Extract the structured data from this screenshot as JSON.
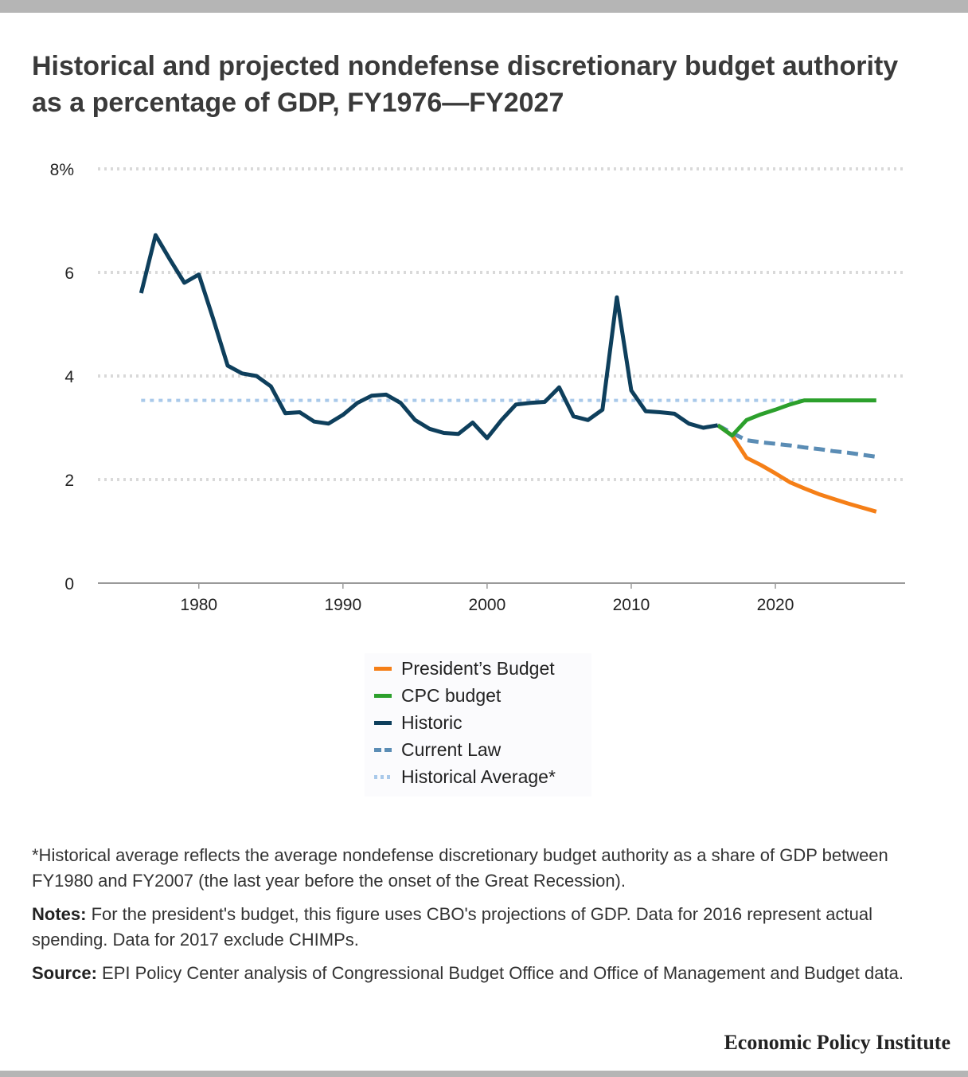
{
  "title": "Historical and projected nondefense discretionary budget authority as a percentage of GDP, FY1976—FY2027",
  "colors": {
    "presidents_budget": "#f57f17",
    "cpc_budget": "#2ca02c",
    "historic": "#0e3f5c",
    "current_law": "#5b8db5",
    "historical_average": "#a9c9ea",
    "gridline": "#d9d9d9"
  },
  "legend": [
    {
      "key": "presidents_budget",
      "label": "President’s Budget",
      "style": "solid"
    },
    {
      "key": "cpc_budget",
      "label": "CPC  budget",
      "style": "solid"
    },
    {
      "key": "historic",
      "label": "Historic",
      "style": "solid"
    },
    {
      "key": "current_law",
      "label": "Current Law",
      "style": "dashed"
    },
    {
      "key": "historical_average",
      "label": "Historical Average*",
      "style": "dotted"
    }
  ],
  "chart_data": {
    "type": "line",
    "xlim": [
      1973,
      2029
    ],
    "ylim": [
      0,
      8
    ],
    "x_ticks": [
      1980,
      1990,
      2000,
      2010,
      2020
    ],
    "y_ticks": [
      0,
      2,
      4,
      6,
      8
    ],
    "y_tick_labels": [
      "0",
      "2",
      "4",
      "6",
      "8%"
    ],
    "grid": "horizontal dotted",
    "legend_position": "bottom-center",
    "series": [
      {
        "name": "Historic",
        "key": "historic",
        "style": "solid",
        "x": [
          1976,
          1977,
          1978,
          1979,
          1980,
          1981,
          1982,
          1983,
          1984,
          1985,
          1986,
          1987,
          1988,
          1989,
          1990,
          1991,
          1992,
          1993,
          1994,
          1995,
          1996,
          1997,
          1998,
          1999,
          2000,
          2001,
          2002,
          2003,
          2004,
          2005,
          2006,
          2007,
          2008,
          2009,
          2010,
          2011,
          2012,
          2013,
          2014,
          2015,
          2016
        ],
        "y": [
          5.6,
          6.72,
          6.25,
          5.8,
          5.96,
          5.1,
          4.2,
          4.05,
          4.0,
          3.8,
          3.28,
          3.3,
          3.12,
          3.08,
          3.25,
          3.48,
          3.62,
          3.64,
          3.48,
          3.15,
          2.98,
          2.9,
          2.88,
          3.1,
          2.8,
          3.15,
          3.45,
          3.48,
          3.5,
          3.78,
          3.22,
          3.15,
          3.35,
          5.52,
          3.72,
          3.32,
          3.3,
          3.27,
          3.08,
          3.0,
          3.05
        ]
      },
      {
        "name": "President’s Budget",
        "key": "presidents_budget",
        "style": "solid",
        "x": [
          2016,
          2017,
          2018,
          2019,
          2020,
          2021,
          2022,
          2023,
          2024,
          2025,
          2026,
          2027
        ],
        "y": [
          3.05,
          2.85,
          2.42,
          2.28,
          2.12,
          1.95,
          1.83,
          1.72,
          1.63,
          1.54,
          1.46,
          1.38
        ]
      },
      {
        "name": "CPC  budget",
        "key": "cpc_budget",
        "style": "solid",
        "x": [
          2016,
          2017,
          2018,
          2019,
          2020,
          2021,
          2022,
          2023,
          2024,
          2025,
          2026,
          2027
        ],
        "y": [
          3.05,
          2.85,
          3.15,
          3.26,
          3.35,
          3.45,
          3.53,
          3.53,
          3.53,
          3.53,
          3.53,
          3.53
        ]
      },
      {
        "name": "Current Law",
        "key": "current_law",
        "style": "dashed",
        "x": [
          2016,
          2017,
          2018,
          2019,
          2020,
          2021,
          2022,
          2023,
          2024,
          2025,
          2026,
          2027
        ],
        "y": [
          3.05,
          2.9,
          2.76,
          2.72,
          2.69,
          2.66,
          2.62,
          2.59,
          2.55,
          2.52,
          2.48,
          2.44
        ]
      },
      {
        "name": "Historical Average*",
        "key": "historical_average",
        "style": "dotted",
        "x": [
          1976,
          2027
        ],
        "y": [
          3.53,
          3.53
        ]
      }
    ]
  },
  "footnotes": {
    "average_note": "*Historical average reflects the average nondefense discretionary budget authority as a share of GDP between FY1980 and FY2007 (the last year before the onset of the Great Recession).",
    "notes_label": "Notes:",
    "notes_text": " For the president's budget, this figure uses CBO's projections of GDP. Data for 2016 represent actual spending. Data for 2017 exclude CHIMPs.",
    "source_label": "Source:",
    "source_text": " EPI Policy Center analysis of Congressional Budget Office and Office of Management and Budget data."
  },
  "brand": "Economic Policy Institute"
}
